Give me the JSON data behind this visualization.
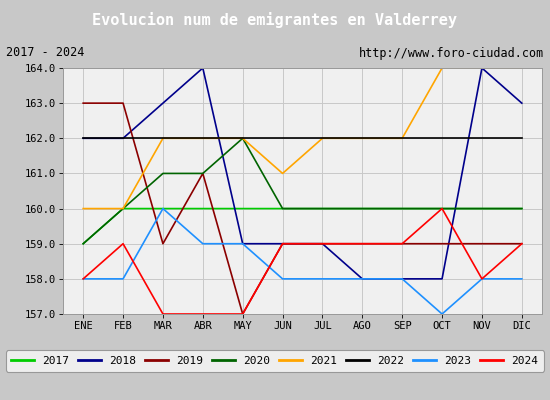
{
  "title": "Evolucion num de emigrantes en Valderrey",
  "subtitle_left": "2017 - 2024",
  "subtitle_right": "http://www.foro-ciudad.com",
  "months": [
    "ENE",
    "FEB",
    "MAR",
    "ABR",
    "MAY",
    "JUN",
    "JUL",
    "AGO",
    "SEP",
    "OCT",
    "NOV",
    "DIC"
  ],
  "month_indices": [
    1,
    2,
    3,
    4,
    5,
    6,
    7,
    8,
    9,
    10,
    11,
    12
  ],
  "ylim": [
    157.0,
    164.0
  ],
  "yticks": [
    157.0,
    158.0,
    159.0,
    160.0,
    161.0,
    162.0,
    163.0,
    164.0
  ],
  "series": {
    "2017": {
      "color": "#00cc00",
      "data": [
        159.0,
        160.0,
        160.0,
        160.0,
        160.0,
        160.0,
        160.0,
        160.0,
        160.0,
        160.0,
        160.0,
        160.0
      ]
    },
    "2018": {
      "color": "#00008b",
      "data": [
        162.0,
        162.0,
        163.0,
        164.0,
        159.0,
        159.0,
        159.0,
        158.0,
        158.0,
        158.0,
        164.0,
        163.0
      ]
    },
    "2019": {
      "color": "#8b0000",
      "data": [
        163.0,
        163.0,
        159.0,
        161.0,
        157.0,
        159.0,
        159.0,
        159.0,
        159.0,
        159.0,
        159.0,
        159.0
      ]
    },
    "2020": {
      "color": "#006400",
      "data": [
        159.0,
        160.0,
        161.0,
        161.0,
        162.0,
        160.0,
        160.0,
        160.0,
        160.0,
        160.0,
        160.0,
        160.0
      ]
    },
    "2021": {
      "color": "#ffa500",
      "data": [
        160.0,
        160.0,
        162.0,
        162.0,
        162.0,
        161.0,
        162.0,
        162.0,
        162.0,
        164.0,
        164.0,
        164.0
      ]
    },
    "2022": {
      "color": "#000000",
      "data": [
        162.0,
        162.0,
        162.0,
        162.0,
        162.0,
        162.0,
        162.0,
        162.0,
        162.0,
        162.0,
        162.0,
        162.0
      ]
    },
    "2023": {
      "color": "#1e90ff",
      "data": [
        158.0,
        158.0,
        160.0,
        159.0,
        159.0,
        158.0,
        158.0,
        158.0,
        158.0,
        157.0,
        158.0,
        158.0
      ]
    },
    "2024": {
      "color": "#ff0000",
      "data": [
        158.0,
        159.0,
        157.0,
        157.0,
        157.0,
        159.0,
        159.0,
        159.0,
        159.0,
        160.0,
        158.0,
        159.0
      ]
    }
  },
  "title_bg_color": "#4a6fa5",
  "title_text_color": "#ffffff",
  "subtitle_bg_color": "#d4d4d4",
  "chart_bg_color": "#f0f0f0",
  "plot_bg_color": "#e8e8e8",
  "grid_color": "#c8c8c8",
  "legend_order": [
    "2017",
    "2018",
    "2019",
    "2020",
    "2021",
    "2022",
    "2023",
    "2024"
  ],
  "figsize": [
    5.5,
    4.0
  ],
  "dpi": 100
}
